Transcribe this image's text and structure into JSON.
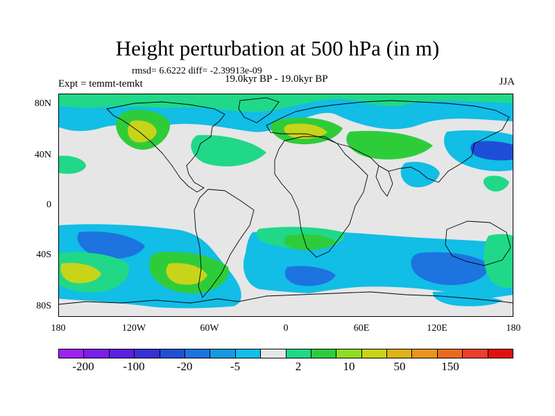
{
  "title": "Height perturbation at 500 hPa (in m)",
  "stats": "rmsd= 6.6222 diff= -2.39913e-09",
  "expt": "Expt = temmt-temkt",
  "period": "19.0kyr BP - 19.0kyr BP",
  "season": "JJA",
  "lat_ticks": [
    "80N",
    "40N",
    "0",
    "40S",
    "80S"
  ],
  "lon_ticks": [
    "180",
    "120W",
    "60W",
    "0",
    "60E",
    "120E",
    "180"
  ],
  "colorbar": {
    "colors": [
      "#a020f0",
      "#7a1ee8",
      "#5a1fe0",
      "#3b2fd6",
      "#1f4fd6",
      "#1d73df",
      "#1599e0",
      "#12bde6",
      "#e6e6e6",
      "#20d888",
      "#2fcc3a",
      "#8fdc22",
      "#c8d41a",
      "#e0b21a",
      "#e8951c",
      "#ea6b1e",
      "#e8402a",
      "#e01010"
    ],
    "labels": [
      "-200",
      "-100",
      "-20",
      "-5",
      "2",
      "10",
      "50",
      "150"
    ]
  },
  "map_colors": {
    "background": "#e6e6e6",
    "cyan": "#12bde6",
    "blue": "#1d73df",
    "deep_blue": "#1f4fd6",
    "teal": "#20d888",
    "green": "#2fcc3a",
    "yellow_green": "#c8d41a"
  }
}
